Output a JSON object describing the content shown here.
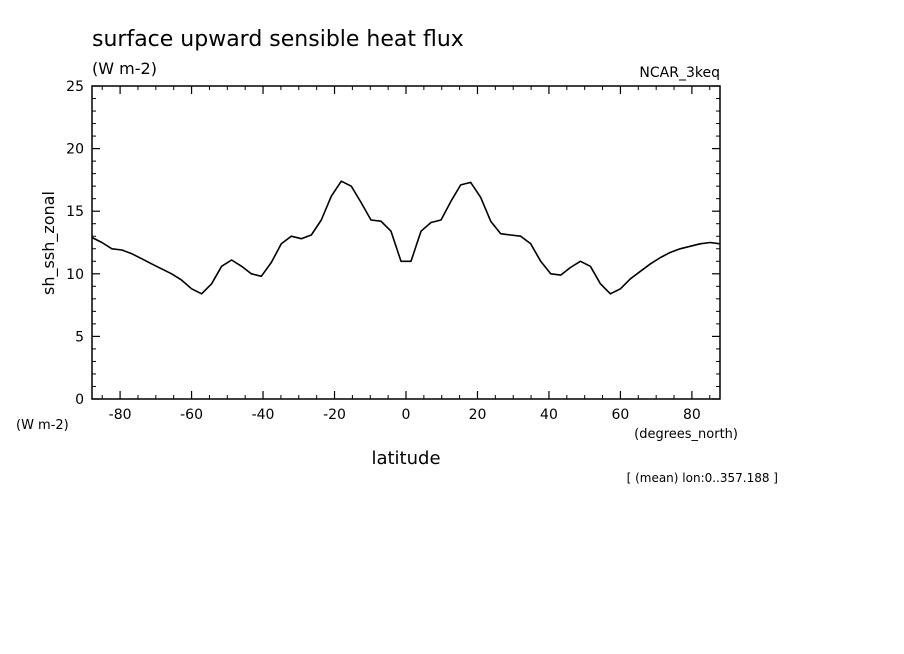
{
  "chart_data": {
    "type": "line",
    "title": "surface upward sensible heat flux",
    "units": "(W m-2)",
    "model": "NCAR_3keq",
    "ylabel": "sh_ssh_zonal",
    "yunits": "(W m-2)",
    "xlabel": "latitude",
    "xunits": "(degrees_north)",
    "note": "[ (mean) lon:0..357.188 ]",
    "xlim": [
      -87.86,
      87.86
    ],
    "ylim": [
      0,
      25
    ],
    "xticks": [
      -80,
      -60,
      -40,
      -20,
      0,
      20,
      40,
      60,
      80
    ],
    "yticks": [
      0,
      5,
      10,
      15,
      20,
      25
    ],
    "grid": false,
    "series": [
      {
        "x": [
          -87.86,
          -85.1,
          -82.3,
          -79.5,
          -76.7,
          -73.9,
          -71.2,
          -68.4,
          -65.6,
          -62.8,
          -60.0,
          -57.2,
          -54.4,
          -51.6,
          -48.8,
          -46.0,
          -43.3,
          -40.5,
          -37.7,
          -34.9,
          -32.1,
          -29.3,
          -26.5,
          -23.7,
          -20.9,
          -18.1,
          -15.3,
          -12.6,
          -9.8,
          -7.0,
          -4.2,
          -1.4,
          1.4,
          4.2,
          7.0,
          9.8,
          12.6,
          15.3,
          18.1,
          20.9,
          23.7,
          26.5,
          29.3,
          32.1,
          34.9,
          37.7,
          40.5,
          43.3,
          46.0,
          48.8,
          51.6,
          54.4,
          57.2,
          60.0,
          62.8,
          65.6,
          68.4,
          71.2,
          73.9,
          76.7,
          79.5,
          82.3,
          85.1,
          87.86
        ],
        "y": [
          12.9,
          12.5,
          12.0,
          11.9,
          11.6,
          11.2,
          10.8,
          10.4,
          10.0,
          9.5,
          8.8,
          8.4,
          9.2,
          10.6,
          11.1,
          10.6,
          10.0,
          9.8,
          10.9,
          12.4,
          13.0,
          12.8,
          13.1,
          14.3,
          16.2,
          17.4,
          17.0,
          15.7,
          14.3,
          14.2,
          13.4,
          11.0,
          11.0,
          13.4,
          14.1,
          14.3,
          15.8,
          17.1,
          17.3,
          16.1,
          14.2,
          13.2,
          13.1,
          13.0,
          12.4,
          11.0,
          10.0,
          9.9,
          10.5,
          11.0,
          10.6,
          9.2,
          8.4,
          8.8,
          9.6,
          10.2,
          10.8,
          11.3,
          11.7,
          12.0,
          12.2,
          12.4,
          12.5,
          12.4
        ]
      }
    ]
  }
}
